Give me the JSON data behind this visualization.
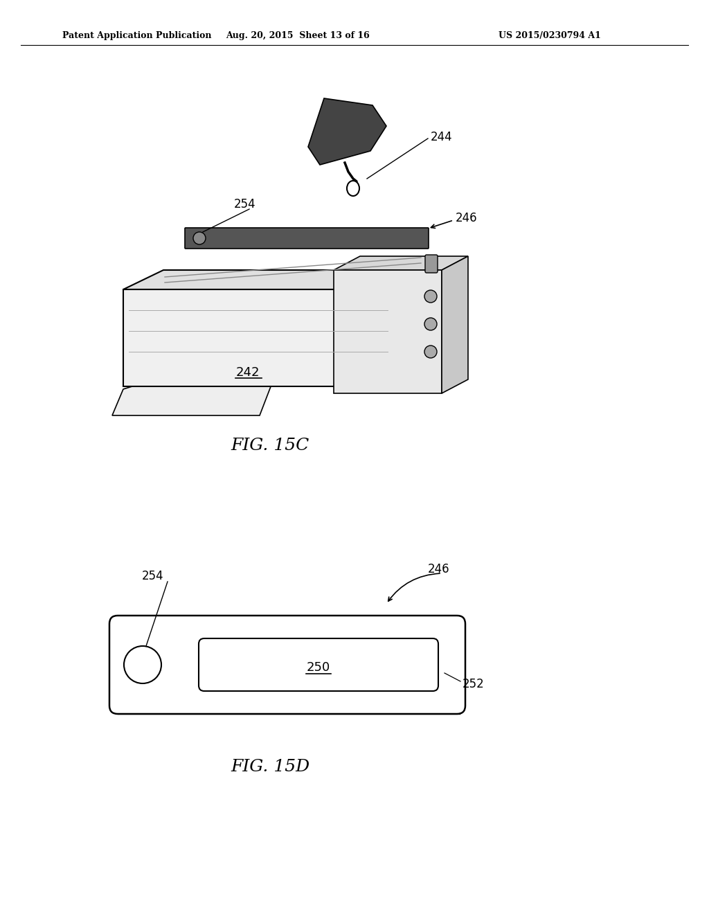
{
  "background_color": "#ffffff",
  "header_left": "Patent Application Publication",
  "header_mid": "Aug. 20, 2015  Sheet 13 of 16",
  "header_right": "US 2015/0230794 A1",
  "fig15c_label": "FIG. 15C",
  "fig15d_label": "FIG. 15D",
  "label_244": "244",
  "label_242": "242",
  "label_246": "246",
  "label_254": "254",
  "label_250": "250",
  "label_252": "252"
}
